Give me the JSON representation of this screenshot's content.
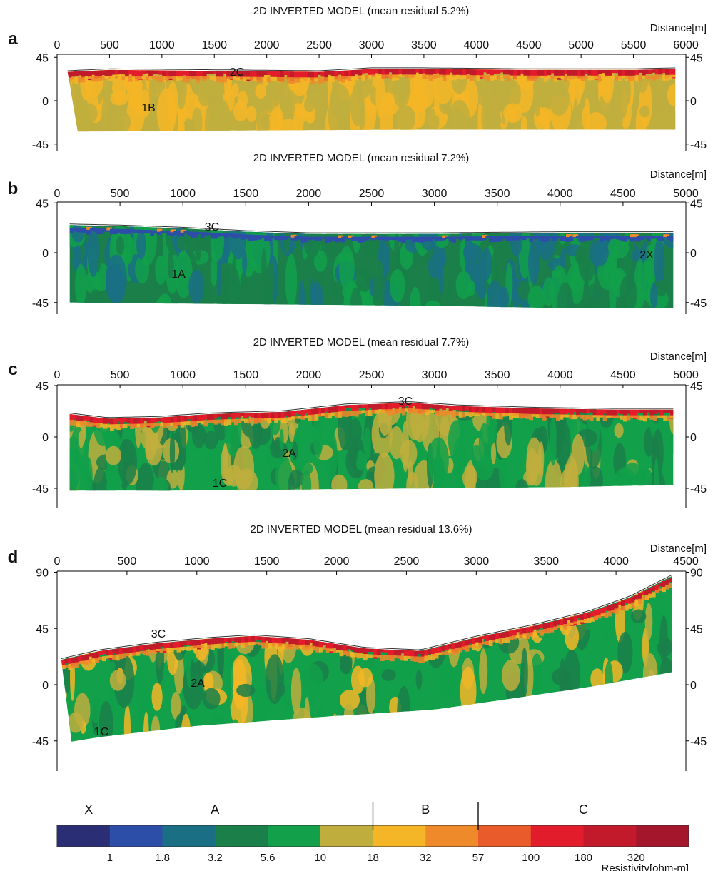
{
  "chart_data": [
    {
      "type": "heatmap",
      "panel_label": "a",
      "title": "2D INVERTED MODEL (mean residual 5.2%)",
      "xlabel": "Distance[m]",
      "x_ticks": [
        "0",
        "500",
        "1000",
        "1500",
        "2000",
        "2500",
        "3000",
        "3500",
        "4000",
        "4500",
        "5000",
        "5500",
        "6000"
      ],
      "xlim": [
        0,
        6000
      ],
      "y_ticks": [
        "45",
        "0",
        "-45"
      ],
      "ylim": [
        -45,
        45
      ],
      "annotations": [
        "2C",
        "1B"
      ],
      "surface": [
        [
          100,
          30
        ],
        [
          500,
          32
        ],
        [
          1500,
          31
        ],
        [
          2500,
          30
        ],
        [
          3000,
          33
        ],
        [
          3500,
          33
        ],
        [
          4500,
          32
        ],
        [
          5500,
          32
        ],
        [
          5900,
          33
        ]
      ],
      "bottom": [
        [
          100,
          -32
        ],
        [
          400,
          -32
        ],
        [
          1500,
          -31
        ],
        [
          3500,
          -30
        ],
        [
          5500,
          -30
        ],
        [
          5900,
          -30
        ]
      ]
    },
    {
      "type": "heatmap",
      "panel_label": "b",
      "title": "2D INVERTED MODEL (mean residual 7.2%)",
      "xlabel": "Distance[m]",
      "x_ticks": [
        "0",
        "500",
        "1000",
        "1500",
        "2000",
        "2500",
        "3000",
        "3500",
        "4000",
        "4500",
        "5000"
      ],
      "xlim": [
        0,
        5000
      ],
      "y_ticks": [
        "45",
        "0",
        "-45"
      ],
      "ylim": [
        -45,
        45
      ],
      "annotations": [
        "3C",
        "1A",
        "2X"
      ],
      "surface": [
        [
          100,
          25
        ],
        [
          500,
          24
        ],
        [
          1000,
          22
        ],
        [
          1500,
          19
        ],
        [
          2000,
          17
        ],
        [
          3000,
          17
        ],
        [
          4000,
          18
        ],
        [
          4900,
          18
        ]
      ],
      "bottom": [
        [
          100,
          -45
        ],
        [
          1000,
          -46
        ],
        [
          2000,
          -47
        ],
        [
          3000,
          -48
        ],
        [
          4000,
          -50
        ],
        [
          4900,
          -50
        ]
      ]
    },
    {
      "type": "heatmap",
      "panel_label": "c",
      "title": "2D INVERTED MODEL (mean residual 7.7%)",
      "xlabel": "Distance[m]",
      "x_ticks": [
        "0",
        "500",
        "1000",
        "1500",
        "2000",
        "2500",
        "3000",
        "3500",
        "4000",
        "4500",
        "5000"
      ],
      "xlim": [
        0,
        5000
      ],
      "y_ticks": [
        "45",
        "0",
        "-45"
      ],
      "ylim": [
        -45,
        45
      ],
      "annotations": [
        "3C",
        "2A",
        "1C"
      ],
      "surface": [
        [
          100,
          20
        ],
        [
          400,
          16
        ],
        [
          800,
          17
        ],
        [
          1200,
          20
        ],
        [
          1800,
          22
        ],
        [
          2300,
          28
        ],
        [
          2800,
          30
        ],
        [
          3200,
          27
        ],
        [
          3800,
          25
        ],
        [
          4400,
          24
        ],
        [
          4900,
          24
        ]
      ],
      "bottom": [
        [
          100,
          -47
        ],
        [
          1000,
          -47
        ],
        [
          2000,
          -46
        ],
        [
          3000,
          -45
        ],
        [
          4000,
          -44
        ],
        [
          4900,
          -42
        ]
      ]
    },
    {
      "type": "heatmap",
      "panel_label": "d",
      "title": "2D INVERTED MODEL (mean residual 13.6%)",
      "xlabel": "Distance[m]",
      "x_ticks": [
        "0",
        "500",
        "1000",
        "1500",
        "2000",
        "2500",
        "3000",
        "3500",
        "4000",
        "4500"
      ],
      "xlim": [
        0,
        4500
      ],
      "y_ticks": [
        "90",
        "45",
        "0",
        "-45"
      ],
      "ylim": [
        -60,
        90
      ],
      "annotations": [
        "3C",
        "2A",
        "1C"
      ],
      "surface": [
        [
          30,
          20
        ],
        [
          300,
          27
        ],
        [
          700,
          33
        ],
        [
          1100,
          37
        ],
        [
          1400,
          39
        ],
        [
          1800,
          36
        ],
        [
          2200,
          29
        ],
        [
          2600,
          27
        ],
        [
          3000,
          38
        ],
        [
          3400,
          47
        ],
        [
          3800,
          58
        ],
        [
          4100,
          70
        ],
        [
          4400,
          87
        ]
      ],
      "bottom": [
        [
          30,
          -47
        ],
        [
          300,
          -42
        ],
        [
          1000,
          -33
        ],
        [
          2000,
          -25
        ],
        [
          2700,
          -20
        ],
        [
          3200,
          -12
        ],
        [
          3800,
          -2
        ],
        [
          4400,
          10
        ]
      ]
    }
  ],
  "legend": {
    "xlabel": "Resistivity[ohm-m]",
    "tick_labels": [
      "1",
      "1.8",
      "3.2",
      "5.6",
      "10",
      "18",
      "32",
      "57",
      "100",
      "180",
      "320"
    ],
    "class_labels": [
      "X",
      "A",
      "B",
      "C"
    ],
    "colors": [
      "#2a2f75",
      "#2d4ea8",
      "#1a6f85",
      "#1a7f49",
      "#12a04a",
      "#bfae3d",
      "#f4b626",
      "#ee8a2a",
      "#e95b2b",
      "#e31c2b",
      "#c21a2a",
      "#a3162b"
    ]
  }
}
